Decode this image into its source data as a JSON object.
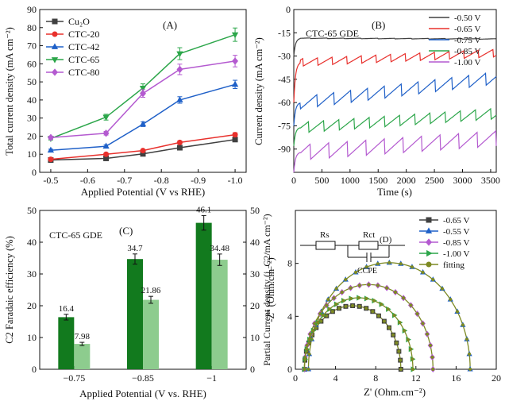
{
  "colors": {
    "cu2o": "#404040",
    "ctc20": "#e8302c",
    "ctc42": "#1f60c8",
    "ctc65": "#2ca64a",
    "ctc80": "#b45ad0",
    "bar_dark": "#127a1e",
    "bar_light": "#8dcc8e",
    "olive": "#7d8a23"
  },
  "chart_data": [
    {
      "id": "A",
      "type": "line",
      "panel_label": "(A)",
      "xlabel": "Applied Potential (V vs RHE)",
      "ylabel": "Total current density (mA cm⁻²)",
      "x": [
        -0.5,
        -0.65,
        -0.75,
        -0.85,
        -1.0
      ],
      "xlim": [
        -0.47,
        -1.03
      ],
      "ylim": [
        0,
        90
      ],
      "xticks": [
        -0.5,
        -0.6,
        -0.7,
        -0.8,
        -0.9,
        -1.0
      ],
      "xtick_labels": [
        "-0.5",
        "-0.6",
        "-0.7",
        "-0.8",
        "-0.9",
        "-1.0"
      ],
      "yticks": [
        0,
        10,
        20,
        30,
        40,
        50,
        60,
        70,
        80,
        90
      ],
      "legend_position": "top-left",
      "series": [
        {
          "name": "Cu₂O",
          "color_key": "cu2o",
          "marker": "square",
          "values": [
            6.8,
            7.7,
            10.2,
            13.6,
            18.1
          ],
          "errors": [
            0.5,
            0.5,
            0.7,
            0.8,
            1.0
          ]
        },
        {
          "name": "CTC-20",
          "color_key": "ctc20",
          "marker": "circle",
          "values": [
            7.2,
            10.0,
            12.0,
            16.5,
            20.8
          ],
          "errors": [
            0.5,
            0.6,
            0.7,
            0.9,
            1.1
          ]
        },
        {
          "name": "CTC-42",
          "color_key": "ctc42",
          "marker": "triangle",
          "values": [
            12.2,
            14.4,
            26.6,
            40.0,
            48.6
          ],
          "errors": [
            0.6,
            0.8,
            1.3,
            1.8,
            2.3
          ]
        },
        {
          "name": "CTC-65",
          "color_key": "ctc65",
          "marker": "triangle-down",
          "values": [
            18.7,
            30.5,
            46.6,
            65.6,
            76.1
          ],
          "errors": [
            0.8,
            1.6,
            2.3,
            3.3,
            3.7
          ]
        },
        {
          "name": "CTC-80",
          "color_key": "ctc80",
          "marker": "diamond",
          "values": [
            19.2,
            21.6,
            43.6,
            56.9,
            61.5
          ],
          "errors": [
            0.8,
            1.0,
            2.1,
            2.9,
            3.2
          ]
        }
      ]
    },
    {
      "id": "B",
      "type": "line",
      "panel_label": "(B)",
      "annotation": "CTC-65 GDE",
      "xlabel": "Time (s)",
      "ylabel": "Current density (mA cm⁻²)",
      "xlim": [
        0,
        3600
      ],
      "ylim": [
        -105,
        0
      ],
      "xticks": [
        0,
        500,
        1000,
        1500,
        2000,
        2500,
        3000,
        3500
      ],
      "yticks": [
        0,
        -15,
        -30,
        -45,
        -60,
        -75,
        -90
      ],
      "legend_position": "top-right",
      "series": [
        {
          "name": "-0.50 V",
          "color_key": "cu2o",
          "start": -30,
          "plateau": -18.5,
          "tooth": 0.4,
          "spacing": 300,
          "end": -19
        },
        {
          "name": "-0.65 V",
          "color_key": "ctc20",
          "start": -60,
          "plateau": -34,
          "tooth": 5,
          "spacing": 260,
          "end": -28
        },
        {
          "name": "-0.75 V",
          "color_key": "ctc42",
          "start": -75,
          "plateau": -60,
          "tooth": 8,
          "spacing": 300,
          "end": -44
        },
        {
          "name": "-0.85 V",
          "color_key": "ctc65",
          "start": -88,
          "plateau": -76,
          "tooth": 7,
          "spacing": 270,
          "end": -67
        },
        {
          "name": "-1.00 V",
          "color_key": "ctc80",
          "start": -105,
          "plateau": -92,
          "tooth": 10,
          "spacing": 330,
          "end": -83
        }
      ]
    },
    {
      "id": "C",
      "type": "bar",
      "panel_label": "(C)",
      "annotation": "CTC-65 GDE",
      "categories": [
        "−0.75",
        "−0.85",
        "−1"
      ],
      "xlabel": "Applied Potential (V vs. RHE)",
      "ylabel": "C2 Faradaic efficiency (%)",
      "ylabel_right": "Partial Current density (j_C2/mA cm⁻²)",
      "ylim": [
        0,
        50
      ],
      "yticks": [
        0,
        10,
        20,
        30,
        40,
        50
      ],
      "series": [
        {
          "name": "C2 Faradaic efficiency",
          "color_key": "bar_dark",
          "values": [
            16.4,
            34.7,
            46.1
          ],
          "labels": [
            "16.4",
            "34.7",
            "46.1"
          ],
          "errors": [
            0.9,
            1.6,
            2.3
          ]
        },
        {
          "name": "C2 partial current density",
          "color_key": "bar_light",
          "values": [
            7.98,
            21.86,
            34.48
          ],
          "labels": [
            "7.98",
            "21.86",
            "34.48"
          ],
          "errors": [
            0.5,
            1.1,
            1.8
          ]
        }
      ]
    },
    {
      "id": "D",
      "type": "scatter",
      "panel_label": "(D)",
      "xlabel": "Z' (Ohm.cm⁻²)",
      "ylabel": "-Z'' (Ohm.cm⁻²)",
      "xlim": [
        0,
        20
      ],
      "ylim": [
        0,
        12
      ],
      "xticks": [
        0,
        4,
        8,
        12,
        16,
        20
      ],
      "yticks": [
        0,
        4,
        8
      ],
      "legend_position": "top-right",
      "circuit_labels": {
        "rs": "Rs",
        "rct": "Rct",
        "cpe": "CCPE"
      },
      "series": [
        {
          "name": "-0.65 V",
          "color_key": "cu2o",
          "marker": "square",
          "rs": 0.9,
          "rct": 9.6
        },
        {
          "name": "-0.55 V",
          "color_key": "ctc42",
          "marker": "triangle",
          "rs": 1.3,
          "rct": 16.1
        },
        {
          "name": "-0.85 V",
          "color_key": "ctc80",
          "marker": "diamond",
          "rs": 0.9,
          "rct": 12.8
        },
        {
          "name": "-1.00 V",
          "color_key": "ctc65",
          "marker": "triangle-right",
          "rs": 0.9,
          "rct": 10.8
        },
        {
          "name": "fitting",
          "color_key": "olive",
          "marker": "circle",
          "rs": 0,
          "rct": 0
        }
      ]
    }
  ]
}
